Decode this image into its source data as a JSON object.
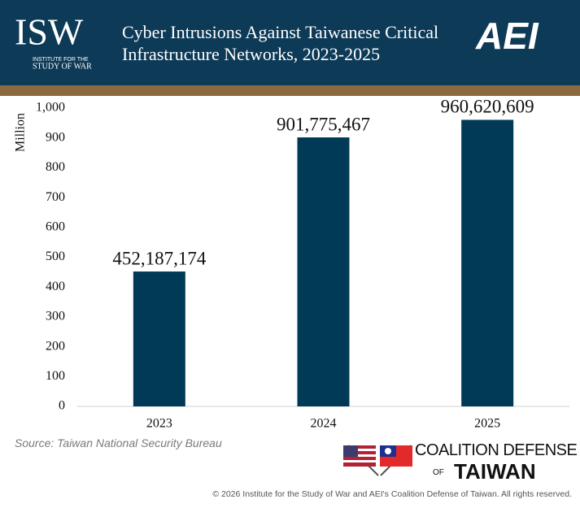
{
  "header": {
    "logo": "ISW",
    "logo_sub1": "INSTITUTE FOR THE",
    "logo_sub2": "STUDY OF WAR",
    "partner_logo": "AEI"
  },
  "chart_data": {
    "type": "bar",
    "title": "Cyber Intrusions Against Taiwanese Critical Infrastructure Networks, 2023-2025",
    "y_label": "Million",
    "categories": [
      "2023",
      "2024",
      "2025"
    ],
    "values": [
      452.187174,
      901.775467,
      960.620609
    ],
    "value_labels": [
      "452,187,174",
      "901,775,467",
      "960,620,609"
    ],
    "color": "#003a57",
    "ylim": [
      0,
      1000
    ],
    "yticks": [
      0,
      100,
      200,
      300,
      400,
      500,
      600,
      700,
      800,
      900,
      {
        "value": 1000,
        "label": "1,000"
      }
    ]
  },
  "footer": {
    "source": "Source: Taiwan National Security Bureau",
    "coalition_line1": "COALITION DEFENSE",
    "coalition_of": "OF",
    "coalition_line2": "TAIWAN",
    "copyright": "© 2026 Institute for the Study of War and AEI's Coalition Defense of Taiwan. All rights reserved."
  }
}
